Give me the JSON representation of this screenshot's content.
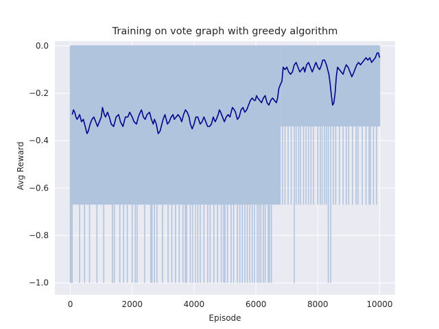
{
  "chart_data": {
    "type": "line",
    "title": "Training on vote graph with greedy algorithm",
    "xlabel": "Episode",
    "ylabel": "Avg Reward",
    "xlim": [
      -500,
      10500
    ],
    "ylim": [
      -1.05,
      0.02
    ],
    "xticks": [
      0,
      2000,
      4000,
      6000,
      8000,
      10000
    ],
    "xtick_labels": [
      "0",
      "2000",
      "4000",
      "6000",
      "8000",
      "10000"
    ],
    "yticks": [
      -1.0,
      -0.8,
      -0.6,
      -0.4,
      -0.2,
      0.0
    ],
    "ytick_labels": [
      "−1.0",
      "−0.8",
      "−0.6",
      "−0.4",
      "−0.2",
      "0.0"
    ],
    "grid": true,
    "background": "#eaeaf2",
    "series": [
      {
        "kind": "raw-episode-reward-band",
        "color": "#b0c4de",
        "x_range": [
          0,
          10000
        ],
        "upper": 0.0,
        "dense_lower_segments": [
          {
            "x": [
              0,
              6800
            ],
            "lower": -0.67
          },
          {
            "x": [
              6800,
              10000
            ],
            "lower": -0.34
          }
        ],
        "spikes_to_minus_1": [
          20,
          60,
          300,
          460,
          620,
          860,
          1080,
          1360,
          1420,
          1600,
          1720,
          1840,
          2000,
          2100,
          2160,
          2400,
          2600,
          2640,
          2720,
          2800,
          2980,
          3160,
          3280,
          3400,
          3520,
          3640,
          3720,
          3760,
          3880,
          3960,
          4040,
          4120,
          4200,
          4320,
          4440,
          4520,
          4640,
          4760,
          4880,
          4960,
          5000,
          5080,
          5200,
          5280,
          5400,
          5480,
          5560,
          5640,
          5720,
          5800,
          5880,
          5960,
          6040,
          6100,
          6160,
          6240,
          6300,
          6400,
          6440,
          6500,
          7240,
          8340,
          8420
        ],
        "spikes_to_minus_0_67": [
          6860,
          6940,
          7040,
          7140,
          7300,
          7380,
          7440,
          7540,
          7620,
          7700,
          7780,
          7860,
          8000,
          8080,
          8140,
          8220,
          8280,
          8500,
          8580,
          8700,
          8820,
          8920,
          9000,
          9120,
          9240,
          9300,
          9440,
          9560,
          9660,
          9700,
          9800,
          9900
        ]
      },
      {
        "kind": "running-average",
        "color": "#00008b",
        "points": [
          [
            60,
            -0.29
          ],
          [
            100,
            -0.27
          ],
          [
            140,
            -0.28
          ],
          [
            180,
            -0.3
          ],
          [
            220,
            -0.31
          ],
          [
            260,
            -0.3
          ],
          [
            300,
            -0.29
          ],
          [
            360,
            -0.32
          ],
          [
            420,
            -0.31
          ],
          [
            480,
            -0.34
          ],
          [
            540,
            -0.37
          ],
          [
            580,
            -0.36
          ],
          [
            640,
            -0.33
          ],
          [
            700,
            -0.31
          ],
          [
            760,
            -0.3
          ],
          [
            820,
            -0.32
          ],
          [
            880,
            -0.34
          ],
          [
            940,
            -0.32
          ],
          [
            1000,
            -0.3
          ],
          [
            1040,
            -0.26
          ],
          [
            1100,
            -0.29
          ],
          [
            1140,
            -0.3
          ],
          [
            1200,
            -0.28
          ],
          [
            1260,
            -0.3
          ],
          [
            1320,
            -0.33
          ],
          [
            1400,
            -0.34
          ],
          [
            1480,
            -0.3
          ],
          [
            1560,
            -0.29
          ],
          [
            1620,
            -0.32
          ],
          [
            1700,
            -0.34
          ],
          [
            1780,
            -0.3
          ],
          [
            1860,
            -0.3
          ],
          [
            1920,
            -0.28
          ],
          [
            2000,
            -0.3
          ],
          [
            2060,
            -0.32
          ],
          [
            2140,
            -0.33
          ],
          [
            2200,
            -0.3
          ],
          [
            2260,
            -0.28
          ],
          [
            2300,
            -0.27
          ],
          [
            2360,
            -0.3
          ],
          [
            2420,
            -0.31
          ],
          [
            2480,
            -0.29
          ],
          [
            2560,
            -0.28
          ],
          [
            2620,
            -0.31
          ],
          [
            2680,
            -0.33
          ],
          [
            2720,
            -0.31
          ],
          [
            2780,
            -0.33
          ],
          [
            2840,
            -0.37
          ],
          [
            2900,
            -0.36
          ],
          [
            2960,
            -0.33
          ],
          [
            3000,
            -0.31
          ],
          [
            3060,
            -0.29
          ],
          [
            3100,
            -0.31
          ],
          [
            3140,
            -0.33
          ],
          [
            3200,
            -0.32
          ],
          [
            3260,
            -0.3
          ],
          [
            3320,
            -0.29
          ],
          [
            3360,
            -0.31
          ],
          [
            3420,
            -0.3
          ],
          [
            3480,
            -0.29
          ],
          [
            3540,
            -0.3
          ],
          [
            3600,
            -0.32
          ],
          [
            3660,
            -0.29
          ],
          [
            3720,
            -0.27
          ],
          [
            3780,
            -0.28
          ],
          [
            3840,
            -0.3
          ],
          [
            3880,
            -0.33
          ],
          [
            3940,
            -0.35
          ],
          [
            4000,
            -0.33
          ],
          [
            4060,
            -0.3
          ],
          [
            4120,
            -0.3
          ],
          [
            4200,
            -0.33
          ],
          [
            4260,
            -0.32
          ],
          [
            4320,
            -0.3
          ],
          [
            4380,
            -0.32
          ],
          [
            4440,
            -0.34
          ],
          [
            4500,
            -0.34
          ],
          [
            4560,
            -0.33
          ],
          [
            4620,
            -0.3
          ],
          [
            4680,
            -0.32
          ],
          [
            4720,
            -0.31
          ],
          [
            4780,
            -0.29
          ],
          [
            4820,
            -0.27
          ],
          [
            4860,
            -0.28
          ],
          [
            4920,
            -0.3
          ],
          [
            4980,
            -0.32
          ],
          [
            5040,
            -0.3
          ],
          [
            5100,
            -0.29
          ],
          [
            5160,
            -0.3
          ],
          [
            5200,
            -0.28
          ],
          [
            5240,
            -0.26
          ],
          [
            5300,
            -0.27
          ],
          [
            5340,
            -0.28
          ],
          [
            5400,
            -0.31
          ],
          [
            5460,
            -0.3
          ],
          [
            5520,
            -0.27
          ],
          [
            5580,
            -0.26
          ],
          [
            5640,
            -0.28
          ],
          [
            5700,
            -0.27
          ],
          [
            5760,
            -0.25
          ],
          [
            5820,
            -0.23
          ],
          [
            5880,
            -0.22
          ],
          [
            5940,
            -0.23
          ],
          [
            5980,
            -0.23
          ],
          [
            6020,
            -0.21
          ],
          [
            6060,
            -0.22
          ],
          [
            6120,
            -0.23
          ],
          [
            6180,
            -0.24
          ],
          [
            6240,
            -0.22
          ],
          [
            6300,
            -0.21
          ],
          [
            6360,
            -0.24
          ],
          [
            6420,
            -0.25
          ],
          [
            6480,
            -0.23
          ],
          [
            6540,
            -0.22
          ],
          [
            6600,
            -0.23
          ],
          [
            6660,
            -0.24
          ],
          [
            6700,
            -0.22
          ],
          [
            6740,
            -0.18
          ],
          [
            6800,
            -0.16
          ],
          [
            6840,
            -0.15
          ],
          [
            6880,
            -0.09
          ],
          [
            6940,
            -0.1
          ],
          [
            7000,
            -0.09
          ],
          [
            7060,
            -0.11
          ],
          [
            7120,
            -0.12
          ],
          [
            7180,
            -0.11
          ],
          [
            7240,
            -0.08
          ],
          [
            7300,
            -0.07
          ],
          [
            7360,
            -0.09
          ],
          [
            7420,
            -0.11
          ],
          [
            7480,
            -0.1
          ],
          [
            7540,
            -0.09
          ],
          [
            7580,
            -0.11
          ],
          [
            7640,
            -0.08
          ],
          [
            7700,
            -0.07
          ],
          [
            7760,
            -0.09
          ],
          [
            7820,
            -0.11
          ],
          [
            7880,
            -0.09
          ],
          [
            7940,
            -0.07
          ],
          [
            8000,
            -0.09
          ],
          [
            8060,
            -0.1
          ],
          [
            8120,
            -0.08
          ],
          [
            8160,
            -0.06
          ],
          [
            8220,
            -0.06
          ],
          [
            8280,
            -0.08
          ],
          [
            8320,
            -0.1
          ],
          [
            8360,
            -0.12
          ],
          [
            8400,
            -0.16
          ],
          [
            8440,
            -0.21
          ],
          [
            8480,
            -0.25
          ],
          [
            8520,
            -0.24
          ],
          [
            8560,
            -0.2
          ],
          [
            8600,
            -0.13
          ],
          [
            8640,
            -0.09
          ],
          [
            8700,
            -0.1
          ],
          [
            8760,
            -0.11
          ],
          [
            8820,
            -0.12
          ],
          [
            8860,
            -0.1
          ],
          [
            8920,
            -0.08
          ],
          [
            8980,
            -0.09
          ],
          [
            9040,
            -0.11
          ],
          [
            9100,
            -0.13
          ],
          [
            9140,
            -0.12
          ],
          [
            9200,
            -0.1
          ],
          [
            9260,
            -0.08
          ],
          [
            9320,
            -0.07
          ],
          [
            9380,
            -0.08
          ],
          [
            9440,
            -0.07
          ],
          [
            9500,
            -0.06
          ],
          [
            9560,
            -0.05
          ],
          [
            9620,
            -0.06
          ],
          [
            9680,
            -0.05
          ],
          [
            9740,
            -0.07
          ],
          [
            9800,
            -0.06
          ],
          [
            9860,
            -0.05
          ],
          [
            9920,
            -0.03
          ],
          [
            9960,
            -0.03
          ],
          [
            10000,
            -0.05
          ]
        ]
      }
    ]
  }
}
